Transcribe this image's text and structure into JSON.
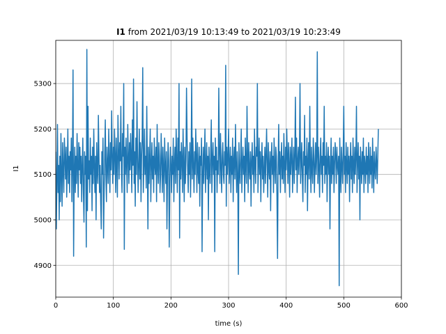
{
  "chart_data": {
    "type": "line",
    "title_bold": "I1",
    "title_rest": " from 2021/03/19 10:13:49 to 2021/03/19 10:23:49",
    "xlabel": "time (s)",
    "ylabel": "I1",
    "xlim": [
      0,
      600
    ],
    "ylim": [
      4830,
      5395
    ],
    "x_ticks": [
      0,
      100,
      200,
      300,
      400,
      500,
      600
    ],
    "y_ticks": [
      4900,
      5000,
      5100,
      5200,
      5300
    ],
    "grid": true,
    "line_color": "#1f77b4",
    "series": [
      {
        "sample_step_s": 1,
        "x_start": 0,
        "values": [
          5150,
          4980,
          5080,
          5210,
          5060,
          5120,
          5000,
          5140,
          5040,
          5190,
          5100,
          5030,
          5170,
          5110,
          5060,
          5180,
          5140,
          5090,
          5160,
          5050,
          5120,
          5200,
          5080,
          5140,
          5060,
          5150,
          5110,
          5180,
          5040,
          5130,
          5330,
          4920,
          5100,
          5160,
          5060,
          5140,
          5080,
          5190,
          5120,
          5050,
          5170,
          5110,
          5160,
          5080,
          5140,
          5040,
          5120,
          5180,
          5060,
          4995,
          5150,
          5100,
          5140,
          4940,
          5375,
          5020,
          5250,
          5090,
          5130,
          5060,
          5180,
          5100,
          5140,
          5020,
          5160,
          5080,
          5200,
          5120,
          5060,
          5140,
          5000,
          5170,
          5110,
          5080,
          5230,
          5140,
          5060,
          5120,
          5040,
          4980,
          5150,
          5100,
          5180,
          4960,
          5060,
          5140,
          5220,
          5100,
          5040,
          5160,
          5120,
          5080,
          5200,
          5130,
          5060,
          5170,
          5110,
          5240,
          5140,
          5080,
          5160,
          5100,
          5200,
          5140,
          5060,
          5180,
          5120,
          5050,
          5230,
          5150,
          5090,
          5170,
          5130,
          5250,
          5110,
          5060,
          5190,
          5140,
          5300,
          4935,
          5160,
          5100,
          5180,
          5120,
          5060,
          5210,
          5140,
          5080,
          5170,
          5110,
          5190,
          5140,
          5060,
          5220,
          5120,
          5310,
          5080,
          5150,
          5030,
          5180,
          5100,
          5260,
          5140,
          5060,
          5120,
          5200,
          5090,
          5170,
          5040,
          5140,
          5180,
          5335,
          5060,
          5120,
          5200,
          5100,
          5140,
          5070,
          5250,
          5120,
          4980,
          5160,
          5080,
          5140,
          5200,
          5040,
          5120,
          5170,
          5090,
          5140,
          5060,
          5180,
          5120,
          5100,
          5160,
          5040,
          5210,
          5120,
          5080,
          5170,
          5140,
          5060,
          5100,
          5190,
          5130,
          5060,
          5160,
          5110,
          5040,
          5180,
          5120,
          5080,
          5150,
          4980,
          5100,
          5170,
          5130,
          4940,
          5080,
          5160,
          5120,
          5060,
          5140,
          5100,
          5180,
          5040,
          5120,
          5160,
          5080,
          5200,
          5130,
          5060,
          5180,
          5110,
          5300,
          4960,
          5150,
          5090,
          5170,
          5130,
          5060,
          5200,
          5120,
          5040,
          5160,
          5080,
          5130,
          5290,
          5180,
          5110,
          5060,
          5150,
          5100,
          5170,
          5050,
          5130,
          5310,
          5090,
          5180,
          5120,
          5060,
          5150,
          5100,
          5200,
          5140,
          5060,
          5170,
          5110,
          5080,
          5160,
          5030,
          5140,
          5120,
          5180,
          4930,
          5100,
          5160,
          5080,
          5140,
          5200,
          5060,
          5120,
          5170,
          5090,
          5140,
          5000,
          5160,
          5110,
          5080,
          5150,
          5220,
          5060,
          5130,
          5170,
          5100,
          5140,
          4930,
          5180,
          5110,
          5160,
          5060,
          5130,
          5100,
          5290,
          5150,
          5080,
          5190,
          5120,
          5060,
          5140,
          5170,
          5100,
          5080,
          5150,
          5120,
          5340,
          5030,
          5160,
          5100,
          5140,
          5200,
          5080,
          5120,
          5160,
          5060,
          5140,
          5100,
          5180,
          5040,
          5130,
          5160,
          5090,
          5210,
          5120,
          5060,
          5150,
          5100,
          4880,
          5170,
          5110,
          5080,
          5140,
          5200,
          5060,
          5120,
          5160,
          5100,
          5140,
          5040,
          5180,
          5120,
          5080,
          5250,
          5140,
          5060,
          5170,
          5110,
          5090,
          5150,
          5030,
          5130,
          5170,
          5100,
          5140,
          5060,
          5200,
          5120,
          5080,
          5160,
          5140,
          5300,
          5060,
          5120,
          5180,
          5100,
          5150,
          5040,
          5130,
          5170,
          5090,
          5140,
          5060,
          5110,
          5160,
          5080,
          5140,
          5200,
          5120,
          5050,
          5170,
          5110,
          5090,
          5150,
          5020,
          5130,
          5170,
          5100,
          5140,
          5060,
          5180,
          5120,
          5080,
          5160,
          5140,
          5050,
          4915,
          5120,
          5210,
          5100,
          5150,
          5060,
          5130,
          5170,
          5090,
          5140,
          5080,
          5190,
          5120,
          5060,
          5160,
          5110,
          5200,
          5140,
          5080,
          5170,
          5120,
          5050,
          5160,
          5100,
          5140,
          5180,
          5060,
          5120,
          5160,
          5080,
          5140,
          5270,
          5110,
          5180,
          5060,
          5130,
          5160,
          5100,
          5140,
          5300,
          5080,
          5120,
          5170,
          5100,
          5040,
          5150,
          5120,
          5230,
          5060,
          5140,
          5100,
          5180,
          5020,
          5130,
          5170,
          5090,
          5250,
          5120,
          5060,
          5160,
          5110,
          5080,
          5180,
          5140,
          5060,
          5120,
          5170,
          5100,
          5140,
          5370,
          5080,
          5160,
          5120,
          5050,
          5140,
          5180,
          5100,
          5140,
          5060,
          5170,
          5120,
          5250,
          5080,
          5140,
          5100,
          5170,
          5040,
          5130,
          5160,
          5100,
          5140,
          4980,
          5120,
          5180,
          5080,
          5140,
          5100,
          5160,
          5060,
          5120,
          5170,
          5140,
          5080,
          5160,
          5120,
          5100,
          5140,
          4855,
          5180,
          5110,
          5060,
          5160,
          5120,
          5080,
          5150,
          5250,
          5100,
          5140,
          5060,
          5170,
          5120,
          5080,
          5160,
          5100,
          5140,
          5040,
          5130,
          5170,
          5090,
          5140,
          5060,
          5180,
          5120,
          5080,
          5160,
          5100,
          5140,
          5250,
          5060,
          5130,
          5170,
          5090,
          5140,
          5000,
          5160,
          5120,
          5080,
          5150,
          5100,
          5180,
          5060,
          5140,
          5120,
          5080,
          5160,
          5100,
          5140,
          5060,
          5170,
          5120,
          5080,
          5160,
          5100,
          5140,
          5070,
          5180,
          5120,
          5060,
          5150,
          5110,
          5090,
          5160,
          5130,
          5080,
          5140,
          5200
        ]
      }
    ]
  }
}
